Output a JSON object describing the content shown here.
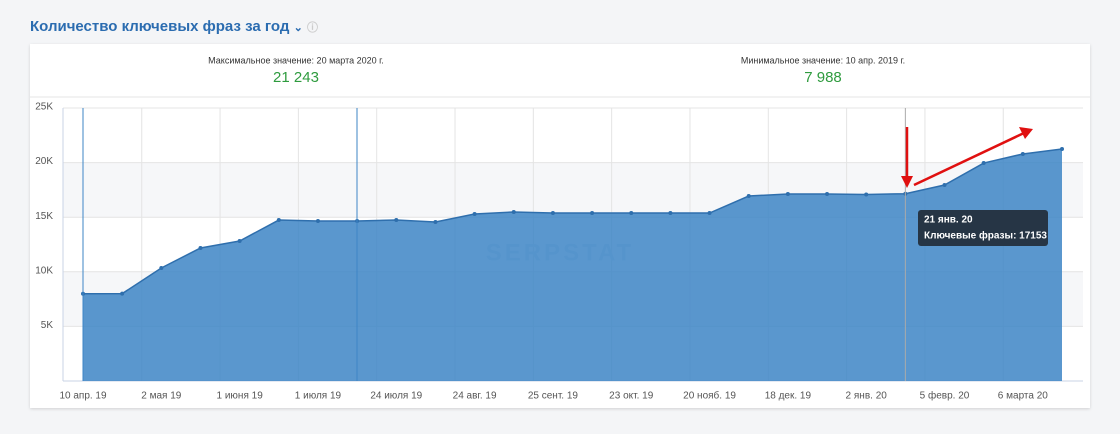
{
  "header": {
    "title": "Количество ключевых фраз за год"
  },
  "stats": [
    {
      "label": "Максимальное значение: 20 марта 2020 г.",
      "value": "21 243"
    },
    {
      "label": "Минимальное значение: 10 апр. 2019 г.",
      "value": "7 988"
    }
  ],
  "chart_data": {
    "type": "area",
    "watermark": "SERPSTAT",
    "categories": [
      "10 апр. 19",
      null,
      "2 мая 19",
      null,
      "1 июня 19",
      null,
      "1 июля 19",
      null,
      "24 июля 19",
      null,
      "24 авг. 19",
      null,
      "25 сент. 19",
      null,
      "23 окт. 19",
      null,
      "20 нояб. 19",
      null,
      "18 дек. 19",
      null,
      "2 янв. 20",
      null,
      "5 февр. 20",
      null,
      "6 марта 20",
      null
    ],
    "series": [
      {
        "name": "Ключевые фразы",
        "color": "#3d85c6",
        "values": [
          7988,
          8000,
          10350,
          12180,
          12820,
          14740,
          14650,
          14650,
          14740,
          14560,
          15290,
          15480,
          15380,
          15380,
          15380,
          15380,
          15380,
          16940,
          17120,
          17120,
          17080,
          17153,
          17950,
          19960,
          20790,
          21243
        ]
      }
    ],
    "ylim": [
      0,
      25000
    ],
    "yticks": [
      {
        "value": 5000,
        "label": "5K"
      },
      {
        "value": 10000,
        "label": "10K"
      },
      {
        "value": 15000,
        "label": "15K"
      },
      {
        "value": 20000,
        "label": "20K"
      },
      {
        "value": 25000,
        "label": "25K"
      }
    ],
    "grid": true,
    "tooltip": {
      "index": 21,
      "title": "21 янв. 20",
      "text": "Ключевые фразы: 17153"
    }
  }
}
